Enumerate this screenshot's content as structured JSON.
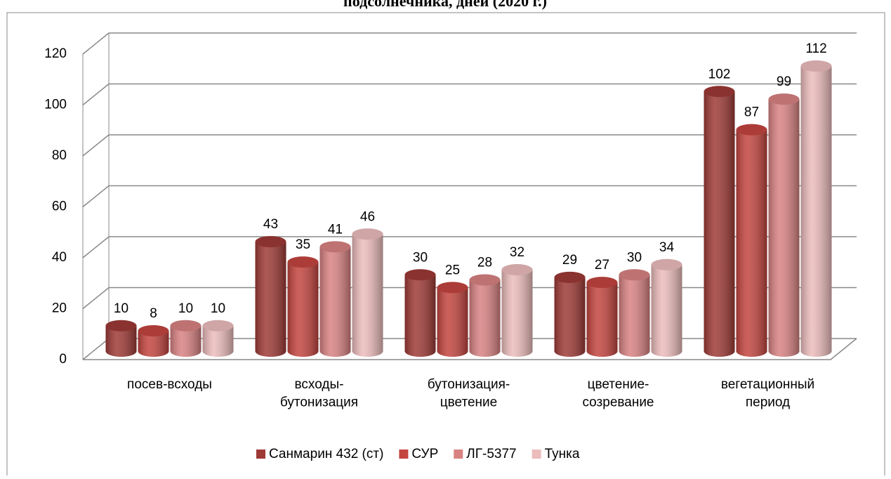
{
  "chart_data": {
    "type": "bar3d",
    "title": "подсолнечника, дней (2020 г.)",
    "categories": [
      "посев-всходы",
      "всходы-\nбутонизация",
      "бутонизация-\nцветение",
      "цветение-\nсозревание",
      "вегетационный\nпериод"
    ],
    "series": [
      {
        "name": "Санмарин 432 (ст)",
        "color": "#9e3a36",
        "values": [
          10,
          43,
          30,
          29,
          102
        ]
      },
      {
        "name": "СУР",
        "color": "#c4453f",
        "values": [
          8,
          35,
          25,
          27,
          87
        ]
      },
      {
        "name": "ЛГ-5377",
        "color": "#d98282",
        "values": [
          10,
          41,
          28,
          30,
          99
        ]
      },
      {
        "name": "Тунка",
        "color": "#ecbcbc",
        "values": [
          10,
          46,
          32,
          34,
          112
        ]
      }
    ],
    "ylim": [
      0,
      120
    ],
    "yticks": [
      0,
      20,
      40,
      60,
      80,
      100,
      120
    ],
    "grid": true,
    "legend": "bottom"
  }
}
